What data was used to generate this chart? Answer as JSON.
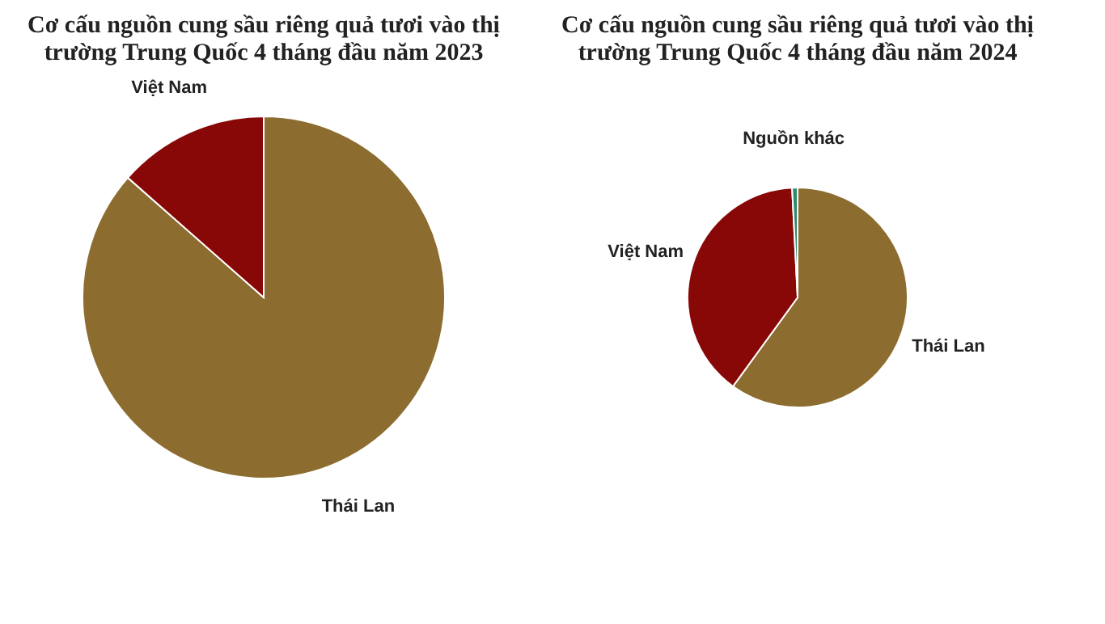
{
  "chart_data": [
    {
      "type": "pie",
      "title": "Cơ cấu nguồn cung sầu riêng quả tươi vào thị trường Trung Quốc 4 tháng đầu năm 2023",
      "categories": [
        "Thái Lan",
        "Việt Nam"
      ],
      "values": [
        86.5,
        13.5
      ],
      "colors": [
        "#8c6d2f",
        "#880808"
      ],
      "legend": false
    },
    {
      "type": "pie",
      "title": "Cơ cấu nguồn cung sầu riêng quả tươi vào thị trường Trung Quốc 4 tháng đầu năm 2024",
      "categories": [
        "Thái Lan",
        "Việt Nam",
        "Nguồn khác"
      ],
      "values": [
        60,
        39.2,
        0.8
      ],
      "colors": [
        "#8c6d2f",
        "#880808",
        "#2e8b6e"
      ],
      "legend": false
    }
  ]
}
